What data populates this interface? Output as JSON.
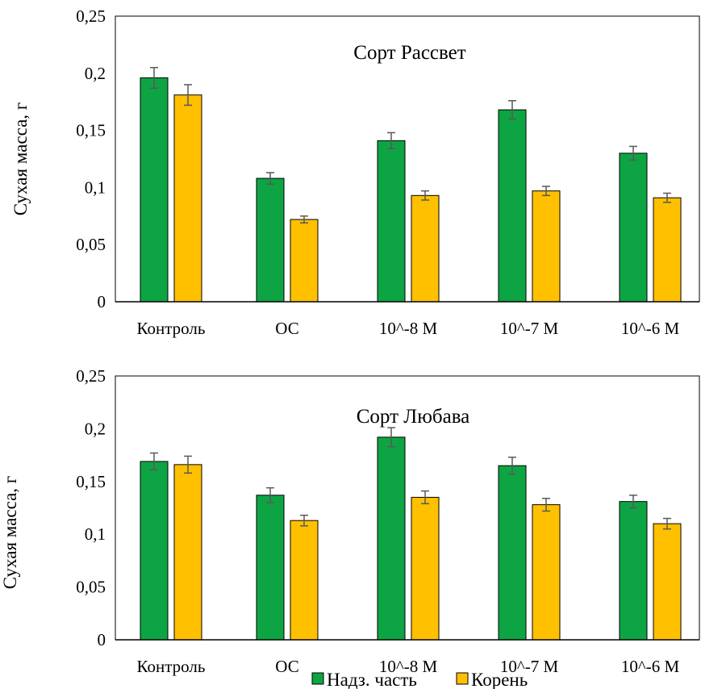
{
  "colors": {
    "series_0": "#0da544",
    "series_1": "#ffc000",
    "error_bar": "#595959",
    "axis": "#000000"
  },
  "legend": {
    "position": "bottom",
    "items": [
      "Надз. часть",
      "Корень"
    ]
  },
  "chart_data": [
    {
      "type": "bar",
      "title": "Сорт Рассвет",
      "ylabel": "Сухая масса, г",
      "xlabel": "",
      "categories": [
        "Контроль",
        "ОС",
        "10^-8 М",
        "10^-7 М",
        "10^-6 М"
      ],
      "ylim": [
        0,
        0.25
      ],
      "yticks": [
        "0",
        "0,05",
        "0,1",
        "0,15",
        "0,2",
        "0,25"
      ],
      "ytick_values": [
        0,
        0.05,
        0.1,
        0.15,
        0.2,
        0.25
      ],
      "grid": false,
      "series": [
        {
          "name": "Надз. часть",
          "values": [
            0.196,
            0.108,
            0.141,
            0.168,
            0.13
          ],
          "errors": [
            0.009,
            0.005,
            0.007,
            0.008,
            0.006
          ]
        },
        {
          "name": "Корень",
          "values": [
            0.181,
            0.072,
            0.093,
            0.097,
            0.091
          ],
          "errors": [
            0.009,
            0.003,
            0.004,
            0.004,
            0.004
          ]
        }
      ]
    },
    {
      "type": "bar",
      "title": "Сорт Любава",
      "ylabel": "Сухая масса, г",
      "xlabel": "",
      "categories": [
        "Контроль",
        "ОС",
        "10^-8 М",
        "10^-7 М",
        "10^-6 М"
      ],
      "ylim": [
        0,
        0.25
      ],
      "yticks": [
        "0",
        "0,05",
        "0,1",
        "0,15",
        "0,2",
        "0,25"
      ],
      "ytick_values": [
        0,
        0.05,
        0.1,
        0.15,
        0.2,
        0.25
      ],
      "grid": false,
      "series": [
        {
          "name": "Надз. часть",
          "values": [
            0.169,
            0.137,
            0.192,
            0.165,
            0.131
          ],
          "errors": [
            0.008,
            0.007,
            0.009,
            0.008,
            0.006
          ]
        },
        {
          "name": "Корень",
          "values": [
            0.166,
            0.113,
            0.135,
            0.128,
            0.11
          ],
          "errors": [
            0.008,
            0.005,
            0.006,
            0.006,
            0.005
          ]
        }
      ]
    }
  ]
}
